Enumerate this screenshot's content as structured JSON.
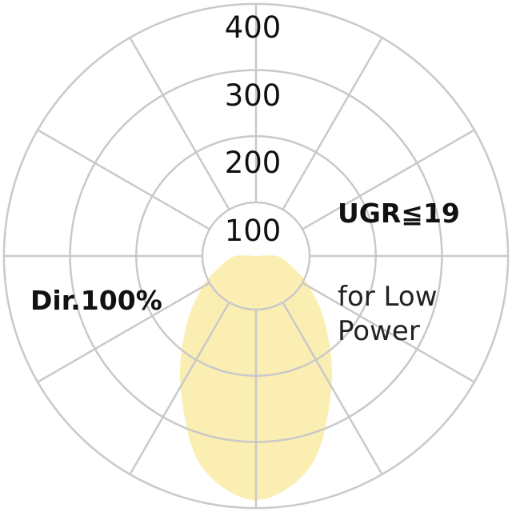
{
  "chart_data": {
    "type": "polar",
    "title": "",
    "radial_ticks": [
      "100",
      "200",
      "300",
      "400"
    ],
    "radial_tick_values": [
      100,
      200,
      300,
      400
    ],
    "rmax": 400,
    "spoke_step_deg": 30,
    "grid": true,
    "series": [
      {
        "angles_deg": [
          -90,
          -75,
          -60,
          -45,
          -30,
          -15,
          0,
          15,
          30,
          45,
          60,
          75,
          90
        ],
        "values": [
          39,
          67,
          112,
          168,
          247,
          345,
          388,
          345,
          247,
          168,
          112,
          67,
          39
        ]
      }
    ],
    "annotations": {
      "left": "Dir.100%",
      "right_bold": "UGR≦19",
      "right_line1": "for Low",
      "right_line2": "Power"
    }
  },
  "colors": {
    "grid": "#c9c9c9",
    "fill": "#fbeeb3",
    "text": "#111111"
  }
}
